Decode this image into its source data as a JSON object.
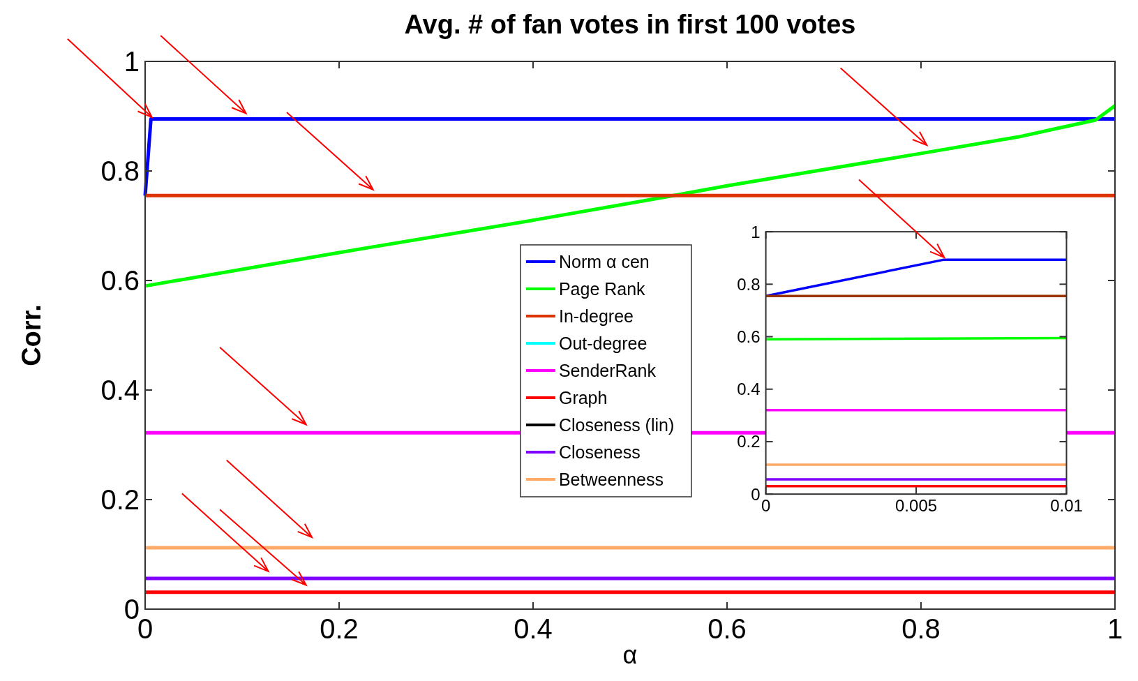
{
  "chart_data": [
    {
      "type": "line",
      "title": "Avg. # of fan votes in first 100 votes",
      "xlabel": "α",
      "ylabel": "Corr.",
      "xlim": [
        0,
        1
      ],
      "ylim": [
        0,
        1
      ],
      "xticks": [
        0,
        0.2,
        0.4,
        0.6,
        0.8,
        1
      ],
      "yticks": [
        0,
        0.2,
        0.4,
        0.6,
        0.8,
        1
      ],
      "grid": false,
      "legend": "center",
      "marker": "none",
      "line_style": "solid",
      "series": [
        {
          "name": "Norm α cen",
          "color": "#0000ff",
          "x": [
            0,
            0.006,
            1
          ],
          "values": [
            0.755,
            0.895,
            0.895
          ]
        },
        {
          "name": "Page Rank",
          "color": "#00ff00",
          "x": [
            0,
            0.2,
            0.4,
            0.545,
            0.6,
            0.8,
            0.9,
            0.98,
            1
          ],
          "values": [
            0.59,
            0.651,
            0.71,
            0.755,
            0.773,
            0.832,
            0.862,
            0.893,
            0.919
          ]
        },
        {
          "name": "In-degree",
          "color": "#dd3300",
          "x": [
            0,
            1
          ],
          "values": [
            0.755,
            0.755
          ]
        },
        {
          "name": "Out-degree",
          "color": "#00ffff"
        },
        {
          "name": "SenderRank",
          "color": "#ff00ff",
          "x": [
            0,
            1
          ],
          "values": [
            0.322,
            0.322
          ]
        },
        {
          "name": "Graph",
          "color": "#ff0000",
          "x": [
            0,
            1
          ],
          "values": [
            0.031,
            0.031
          ]
        },
        {
          "name": "Closeness (lin)",
          "color": "#000000"
        },
        {
          "name": "Closeness",
          "color": "#7f00ff",
          "x": [
            0,
            1
          ],
          "values": [
            0.056,
            0.056
          ]
        },
        {
          "name": "Betweenness",
          "color": "#ffaa66",
          "x": [
            0,
            1
          ],
          "values": [
            0.112,
            0.112
          ]
        }
      ]
    },
    {
      "type": "line",
      "xlim": [
        0,
        0.01
      ],
      "ylim": [
        0,
        1
      ],
      "xticks": [
        0,
        0.005,
        0.01
      ],
      "yticks": [
        0,
        0.2,
        0.4,
        0.6,
        0.8,
        1
      ],
      "grid": false,
      "marker": "none",
      "line_style": "solid",
      "series": [
        {
          "color": "#0000ff",
          "x": [
            0,
            0.0059,
            0.01
          ],
          "values": [
            0.755,
            0.893,
            0.893
          ]
        },
        {
          "color": "#00ff00",
          "x": [
            0,
            0.01
          ],
          "values": [
            0.59,
            0.595
          ]
        },
        {
          "color": "#993300",
          "x": [
            0,
            0.01
          ],
          "values": [
            0.755,
            0.755
          ]
        },
        {
          "color": "#ff00ff",
          "x": [
            0,
            0.01
          ],
          "values": [
            0.32,
            0.32
          ]
        },
        {
          "color": "#ff0000",
          "x": [
            0,
            0.01
          ],
          "values": [
            0.03,
            0.03
          ]
        },
        {
          "color": "#7f00ff",
          "x": [
            0,
            0.01
          ],
          "values": [
            0.056,
            0.056
          ]
        },
        {
          "color": "#ffaa66",
          "x": [
            0,
            0.01
          ],
          "values": [
            0.112,
            0.112
          ]
        }
      ]
    }
  ]
}
